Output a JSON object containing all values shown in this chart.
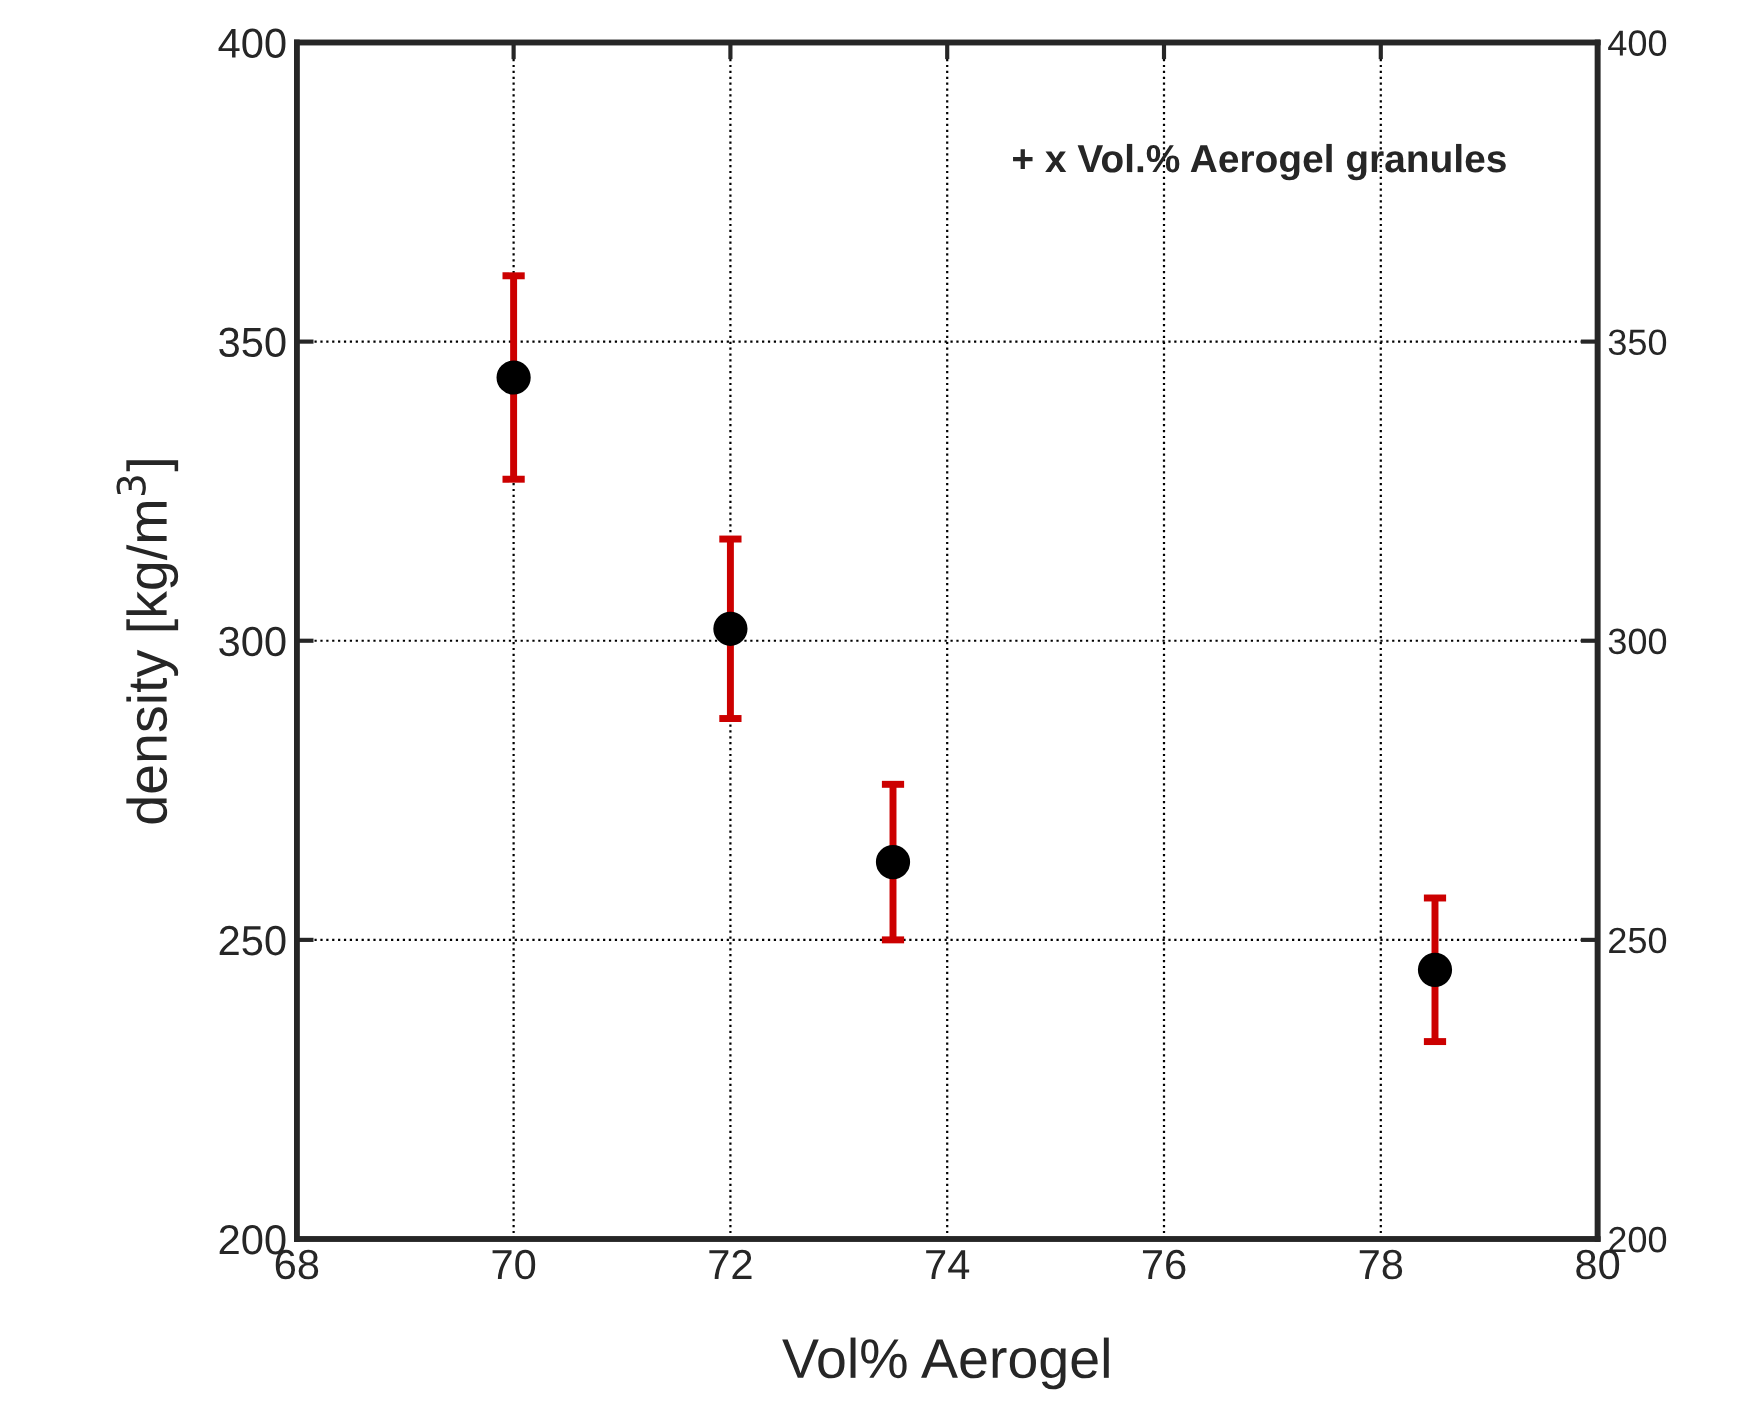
{
  "chart_data": {
    "type": "scatter",
    "xlabel": "Vol% Aerogel",
    "ylabel": "density [kg/m$^{3}$]",
    "annotations": [
      "+ x Vol.% Aerogel granules"
    ],
    "x": [
      70,
      72,
      73.5,
      78.5
    ],
    "series": [
      {
        "color": "#000000",
        "values": [
          344,
          302,
          263,
          245
        ],
        "errors": [
          [
            327,
            361
          ],
          [
            287,
            317
          ],
          [
            250,
            276
          ],
          [
            233,
            257
          ]
        ]
      }
    ],
    "xlim": [
      68,
      80
    ],
    "xticks": [
      68,
      70,
      72,
      74,
      76,
      78,
      80
    ],
    "ylim": [
      200,
      400
    ],
    "yticks": [
      200,
      250,
      300,
      350,
      400
    ],
    "y2lim": [
      200,
      400
    ],
    "y2ticks": [
      200,
      250,
      300,
      350,
      400
    ],
    "grid": true,
    "marker": "circle"
  }
}
